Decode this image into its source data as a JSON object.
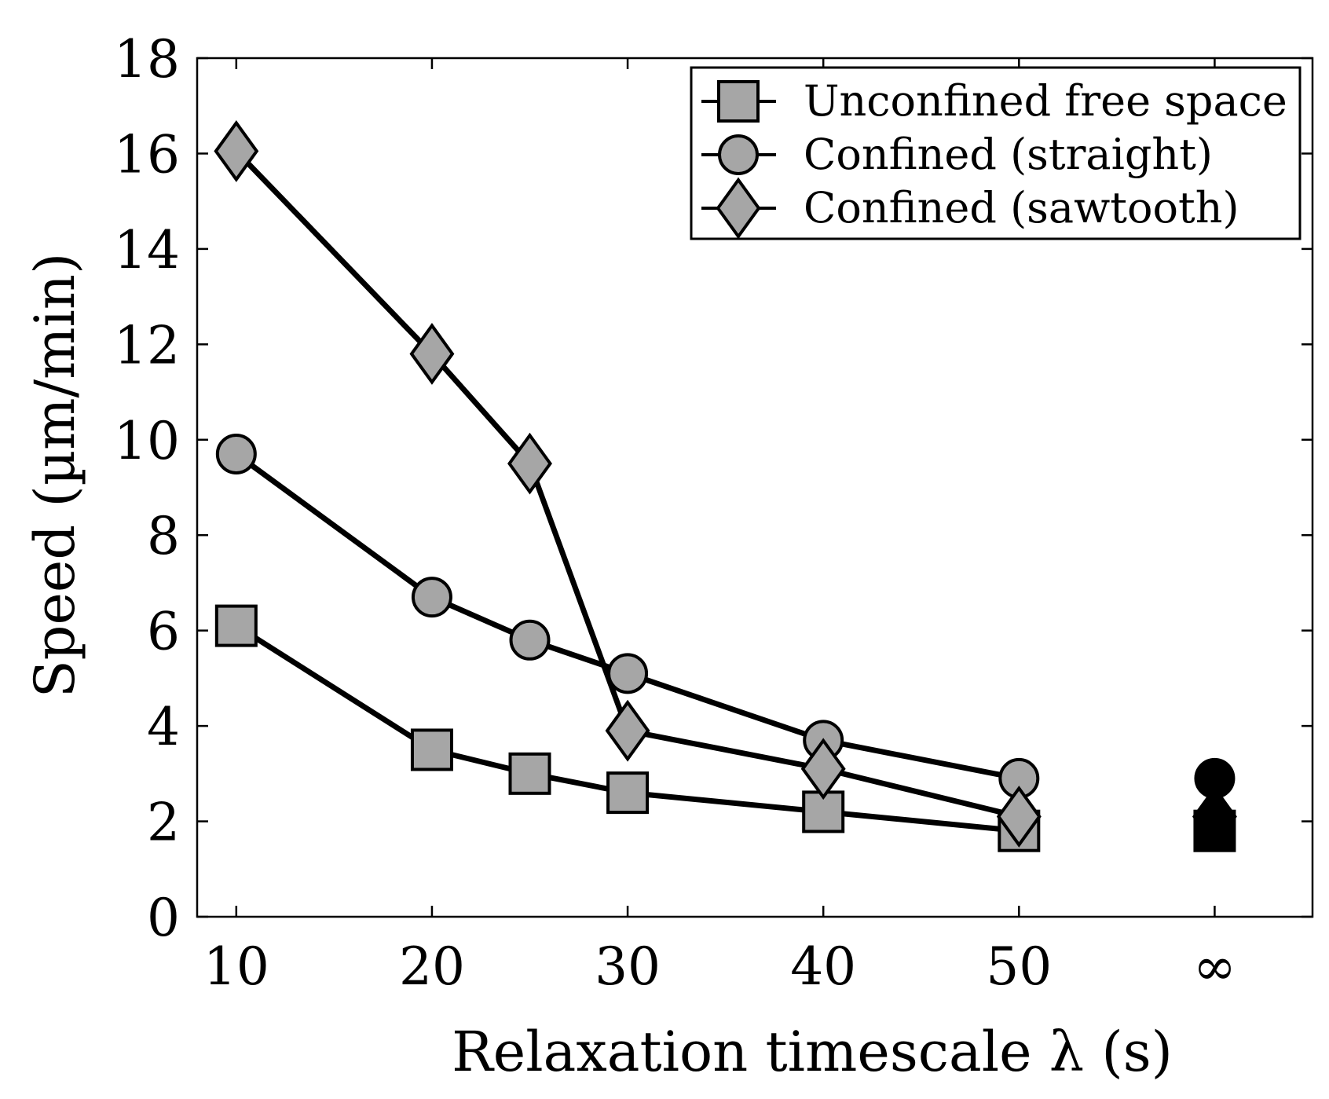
{
  "chart_data": {
    "type": "line",
    "title": "",
    "xlabel": "Relaxation timescale λ (s)",
    "ylabel": "Speed (µm/min)",
    "x_tick_labels": [
      "10",
      "20",
      "30",
      "40",
      "50",
      "∞"
    ],
    "x_tick_values": [
      10,
      20,
      30,
      40,
      50,
      60
    ],
    "y_tick_labels": [
      "0",
      "2",
      "4",
      "6",
      "8",
      "10",
      "12",
      "14",
      "16",
      "18"
    ],
    "y_tick_values": [
      0,
      2,
      4,
      6,
      8,
      10,
      12,
      14,
      16,
      18
    ],
    "xlim": [
      8,
      65
    ],
    "ylim": [
      0,
      18
    ],
    "grid": false,
    "legend_position": "top-right",
    "series": [
      {
        "name": "Unconfined free space",
        "marker": "square",
        "x": [
          10,
          20,
          25,
          30,
          40,
          50
        ],
        "y": [
          6.1,
          3.5,
          3.0,
          2.6,
          2.2,
          1.8
        ]
      },
      {
        "name": "Confined (straight)",
        "marker": "circle",
        "x": [
          10,
          20,
          25,
          30,
          40,
          50
        ],
        "y": [
          9.7,
          6.7,
          5.8,
          5.1,
          3.7,
          2.9
        ]
      },
      {
        "name": "Confined (sawtooth)",
        "marker": "diamond",
        "x": [
          10,
          20,
          25,
          30,
          40,
          50
        ],
        "y": [
          16.05,
          11.8,
          9.5,
          3.9,
          3.1,
          2.1
        ]
      }
    ],
    "limit_points": [
      {
        "series": "Confined (straight)",
        "marker": "circle",
        "x": 60,
        "y": 2.9
      },
      {
        "series": "Confined (sawtooth)",
        "marker": "diamond",
        "x": 60,
        "y": 2.1
      },
      {
        "series": "Unconfined free space",
        "marker": "square",
        "x": 60,
        "y": 1.8
      }
    ],
    "colors": {
      "marker_fill": "#a6a6a6",
      "limit_marker_fill": "#000000",
      "line": "#000000"
    }
  }
}
